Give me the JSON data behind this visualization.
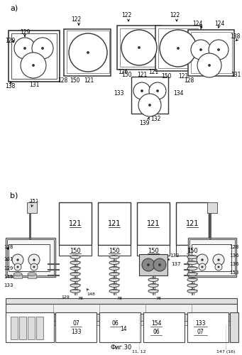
{
  "title": "Фиг.30",
  "background_color": "#ffffff",
  "fig_width": 3.41,
  "fig_height": 5.0,
  "dpi": 100
}
